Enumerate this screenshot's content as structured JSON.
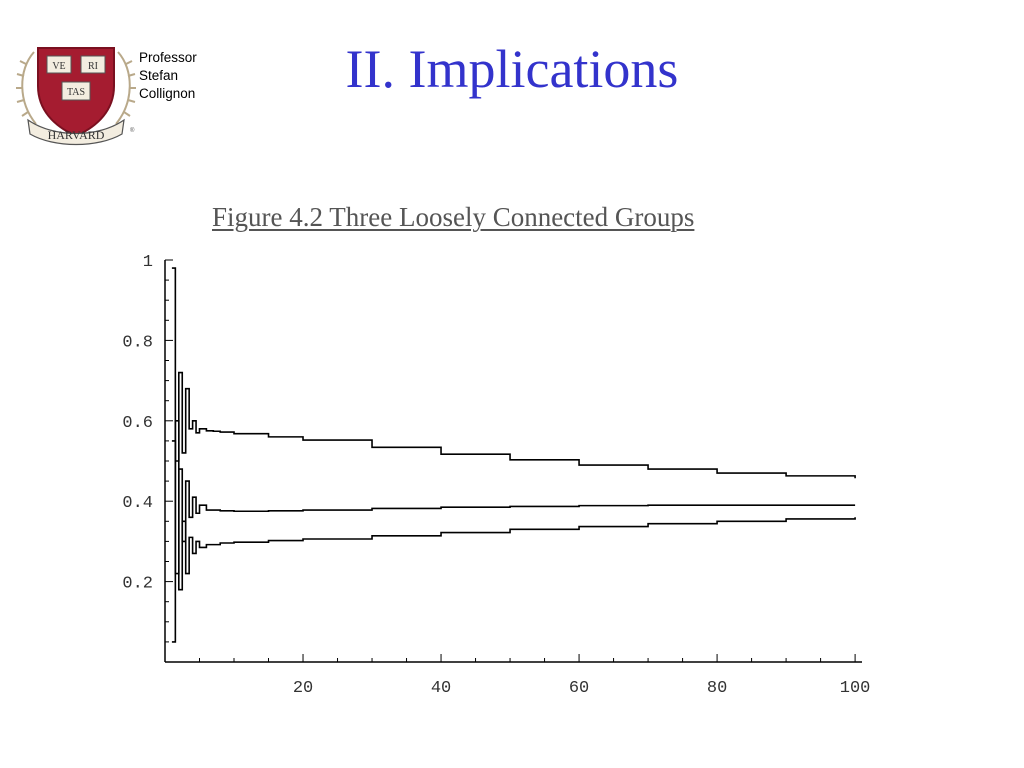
{
  "slide": {
    "title": "II. Implications",
    "author_lines": [
      "Professor",
      "Stefan",
      "Collignon"
    ],
    "title_color": "#3333cc"
  },
  "logo": {
    "shield_words": [
      "VE",
      "RI",
      "TAS"
    ],
    "banner_text": "HARVARD",
    "shield_color": "#a51c30",
    "icon": "harvard-shield-icon"
  },
  "chart_data": {
    "type": "line",
    "title": "Figure 4.2 Three Loosely Connected Groups",
    "xlabel": "",
    "ylabel": "",
    "xlim": [
      0,
      101
    ],
    "ylim": [
      0,
      1
    ],
    "x_ticks": [
      20,
      40,
      60,
      80,
      100
    ],
    "y_ticks": [
      0.2,
      0.4,
      0.6,
      0.8,
      1
    ],
    "y_tick_labels": [
      "0.2",
      "0.4",
      "0.6",
      "0.8",
      "1"
    ],
    "grid": false,
    "legend": "none",
    "line_color": "#000000",
    "series": [
      {
        "x": [
          1,
          1.5,
          2,
          2.5,
          3,
          3.5,
          4,
          4.5,
          5,
          6,
          7,
          8,
          10,
          15,
          20,
          30,
          40,
          50,
          60,
          70,
          80,
          90,
          100
        ],
        "values": [
          0.98,
          0.5,
          0.72,
          0.52,
          0.68,
          0.58,
          0.6,
          0.57,
          0.58,
          0.575,
          0.574,
          0.572,
          0.568,
          0.56,
          0.552,
          0.534,
          0.517,
          0.503,
          0.49,
          0.48,
          0.47,
          0.463,
          0.457
        ]
      },
      {
        "x": [
          1,
          1.5,
          2,
          2.5,
          3,
          3.5,
          4,
          4.5,
          5,
          6,
          8,
          10,
          15,
          20,
          30,
          40,
          50,
          60,
          70,
          80,
          90,
          100
        ],
        "values": [
          0.55,
          0.22,
          0.48,
          0.3,
          0.45,
          0.36,
          0.41,
          0.37,
          0.39,
          0.378,
          0.376,
          0.375,
          0.376,
          0.378,
          0.382,
          0.385,
          0.387,
          0.389,
          0.39,
          0.39,
          0.39,
          0.39
        ]
      },
      {
        "x": [
          1,
          1.5,
          2,
          2.5,
          3,
          3.5,
          4,
          4.5,
          5,
          6,
          8,
          10,
          15,
          20,
          30,
          40,
          50,
          60,
          70,
          80,
          90,
          100
        ],
        "values": [
          0.05,
          0.6,
          0.18,
          0.35,
          0.22,
          0.31,
          0.27,
          0.3,
          0.285,
          0.292,
          0.296,
          0.298,
          0.302,
          0.306,
          0.314,
          0.322,
          0.33,
          0.337,
          0.344,
          0.35,
          0.356,
          0.36
        ]
      }
    ]
  }
}
